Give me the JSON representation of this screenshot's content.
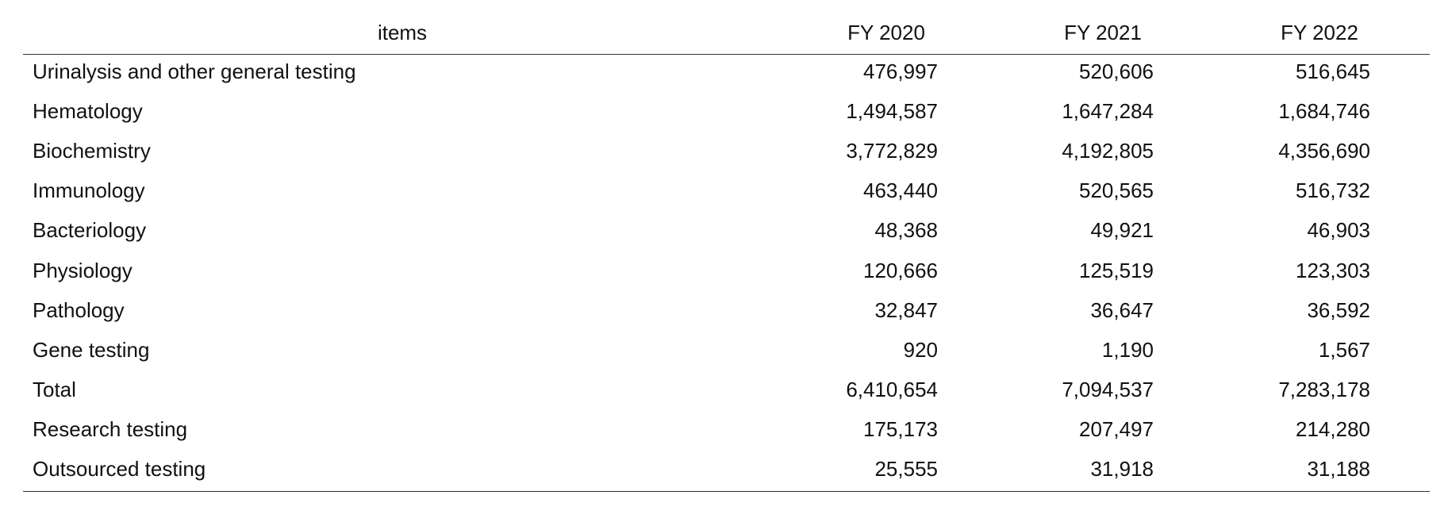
{
  "table": {
    "header": [
      "items",
      "FY 2020",
      "FY 2021",
      "FY 2022"
    ],
    "rows": [
      [
        "Urinalysis and other general testing",
        "476,997",
        "520,606",
        "516,645"
      ],
      [
        "Hematology",
        "1,494,587",
        "1,647,284",
        "1,684,746"
      ],
      [
        "Biochemistry",
        "3,772,829",
        "4,192,805",
        "4,356,690"
      ],
      [
        "Immunology",
        "463,440",
        "520,565",
        "516,732"
      ],
      [
        "Bacteriology",
        "48,368",
        "49,921",
        "46,903"
      ],
      [
        "Physiology",
        "120,666",
        "125,519",
        "123,303"
      ],
      [
        "Pathology",
        "32,847",
        "36,647",
        "36,592"
      ],
      [
        "Gene testing",
        "920",
        "1,190",
        "1,567"
      ],
      [
        "Total",
        "6,410,654",
        "7,094,537",
        "7,283,178"
      ],
      [
        "Research testing",
        "175,173",
        "207,497",
        "214,280"
      ],
      [
        "Outsourced testing",
        "25,555",
        "31,918",
        "31,188"
      ]
    ]
  }
}
